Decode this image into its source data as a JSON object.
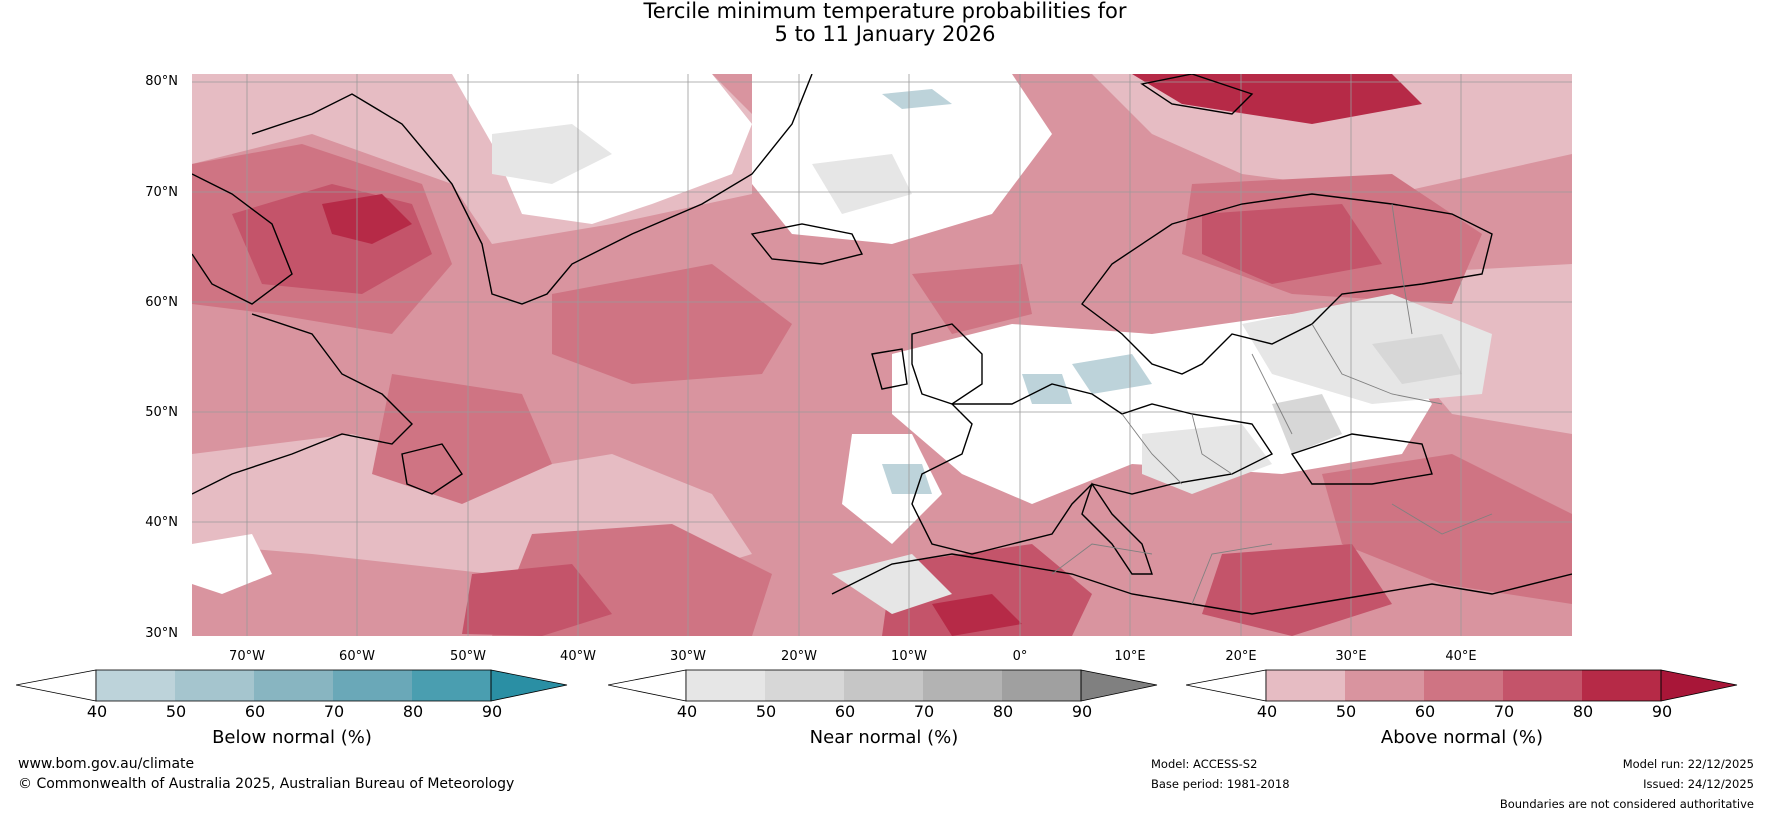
{
  "title": {
    "line1": "Tercile minimum temperature probabilities for",
    "line2": "5 to 11 January 2026"
  },
  "map": {
    "lat_labels": [
      "80°N",
      "70°N",
      "60°N",
      "50°N",
      "40°N",
      "30°N"
    ],
    "lon_labels": [
      "70°W",
      "60°W",
      "50°W",
      "40°W",
      "30°W",
      "20°W",
      "10°W",
      "0°",
      "10°E",
      "20°E",
      "30°E",
      "40°E"
    ],
    "colors": {
      "above": [
        "#e6bcc3",
        "#d9949f",
        "#cf7483",
        "#c4546a",
        "#b62a47",
        "#a81638"
      ],
      "near": [
        "#e6e6e6",
        "#d7d7d7",
        "#c6c6c6",
        "#b3b3b3",
        "#a0a0a0",
        "#808080"
      ],
      "below": [
        "#bdd3da",
        "#a5c5ce",
        "#88b5c1",
        "#6aa8b8",
        "#4a9eb0",
        "#2a8fa4"
      ],
      "coast": "#000000",
      "border": "#808080",
      "grid": "#9a9a9a"
    }
  },
  "colorbars": [
    {
      "label": "Below normal (%)",
      "ticks": [
        "40",
        "50",
        "60",
        "70",
        "80",
        "90"
      ]
    },
    {
      "label": "Near normal (%)",
      "ticks": [
        "40",
        "50",
        "60",
        "70",
        "80",
        "90"
      ]
    },
    {
      "label": "Above normal (%)",
      "ticks": [
        "40",
        "50",
        "60",
        "70",
        "80",
        "90"
      ]
    }
  ],
  "footer": {
    "website": "www.bom.gov.au/climate",
    "copyright": "© Commonwealth of Australia 2025, Australian Bureau of Meteorology",
    "model": "Model: ACCESS-S2",
    "base_period": "Base period: 1981-2018",
    "model_run": "Model run: 22/12/2025",
    "issued": "Issued: 24/12/2025",
    "disclaimer": "Boundaries are not considered authoritative"
  }
}
